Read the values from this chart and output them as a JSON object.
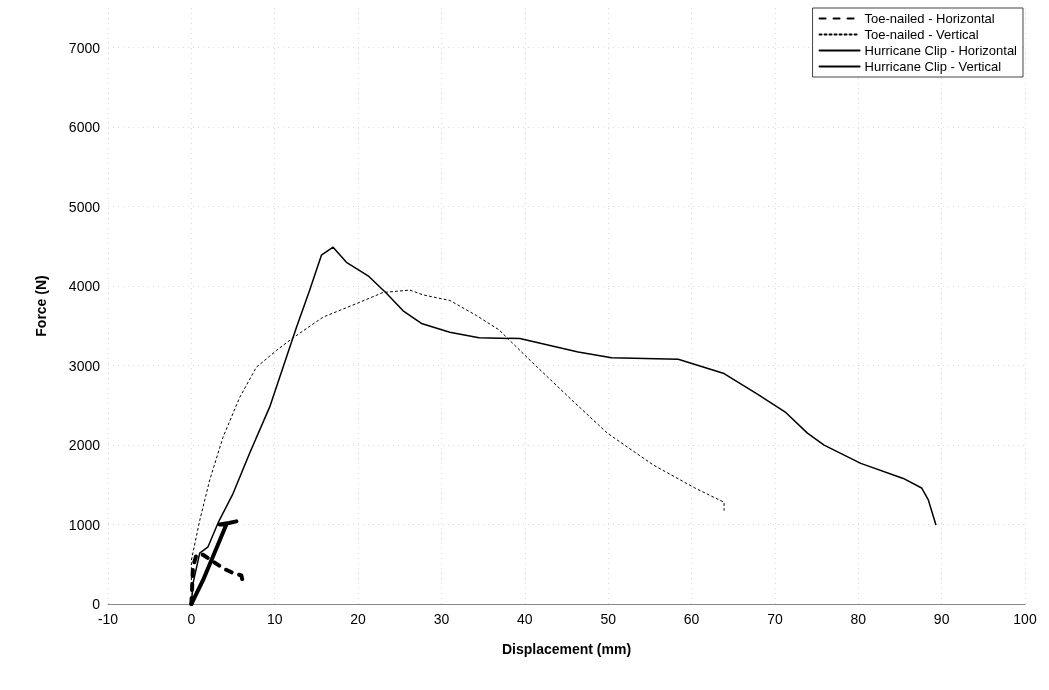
{
  "chart_data": {
    "type": "line",
    "xlabel": "Displacement (mm)",
    "ylabel": "Force (N)",
    "xlim": [
      -10,
      100
    ],
    "xticks": [
      -10,
      0,
      10,
      20,
      30,
      40,
      50,
      60,
      70,
      80,
      90,
      100
    ],
    "ylim": [
      0,
      7500
    ],
    "yticks": [
      0,
      1000,
      2000,
      3000,
      4000,
      5000,
      6000,
      7000
    ],
    "grid": true,
    "legend": "top right",
    "marker": "none",
    "series": [
      {
        "name": "Toe-nailed - Horizontal",
        "color": "#000000",
        "line_style": "dashed",
        "x": [
          0,
          0.2,
          0.6,
          1.4,
          3.8,
          5.0,
          6.0,
          6.2
        ],
        "values": [
          0,
          470,
          620,
          620,
          450,
          390,
          360,
          260
        ]
      },
      {
        "name": "Toe-nailed - Vertical",
        "color": "#000000",
        "line_style": "dotted",
        "x": [
          0,
          0,
          1.0,
          2.2,
          3.8,
          5.8,
          7.8,
          10.2,
          12.2,
          15.8,
          19.8,
          23.0,
          26.2,
          27.8,
          31.0,
          34.2,
          36.9,
          40.4,
          45.4,
          49.9,
          55.4,
          60.4,
          63.9,
          63.9
        ],
        "values": [
          180,
          550,
          1050,
          1560,
          2100,
          2600,
          2980,
          3190,
          3350,
          3610,
          3780,
          3920,
          3950,
          3890,
          3820,
          3630,
          3450,
          3090,
          2590,
          2150,
          1750,
          1460,
          1280,
          1180
        ]
      },
      {
        "name": "Hurricane Clip - Horizontal",
        "color": "#000000",
        "line_style": "solid",
        "x": [
          0,
          1.4,
          4.2,
          3.4,
          4.5,
          5.4
        ],
        "values": [
          0,
          300,
          1000,
          1000,
          1020,
          1040
        ]
      },
      {
        "name": "Hurricane Clip - Vertical",
        "color": "#000000",
        "line_style": "solid",
        "x": [
          0,
          0.2,
          1.0,
          2.0,
          3.2,
          5.0,
          7.0,
          9.4,
          11.0,
          12.6,
          14.2,
          15.6,
          17.0,
          18.6,
          21.2,
          23.4,
          25.4,
          27.6,
          31.0,
          34.5,
          39.4,
          46.4,
          50.4,
          58.4,
          63.9,
          67.9,
          71.3,
          73.9,
          75.9,
          80.3,
          85.4,
          87.6,
          88.4,
          89.3
        ],
        "values": [
          0,
          260,
          640,
          720,
          1020,
          1390,
          1900,
          2480,
          2980,
          3480,
          3950,
          4390,
          4490,
          4300,
          4130,
          3910,
          3690,
          3530,
          3420,
          3350,
          3340,
          3170,
          3100,
          3080,
          2900,
          2640,
          2410,
          2150,
          2000,
          1770,
          1580,
          1460,
          1310,
          1000
        ]
      }
    ]
  }
}
